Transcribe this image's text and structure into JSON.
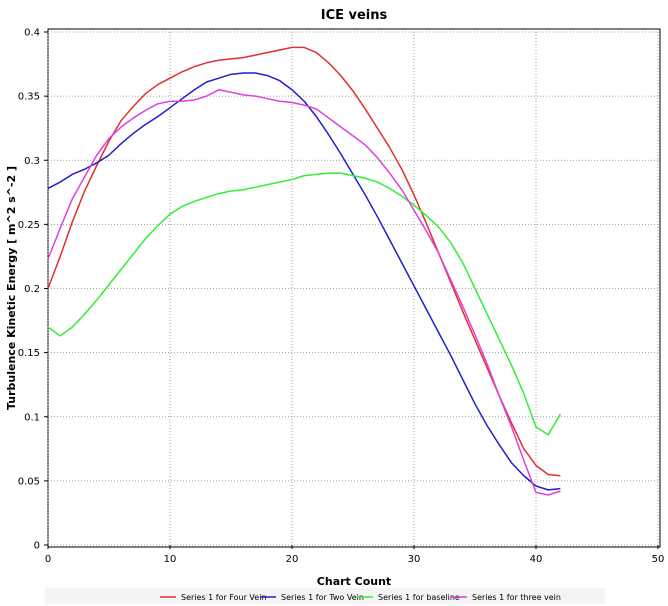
{
  "chart_data": {
    "type": "line",
    "title": "ICE veins",
    "xlabel": "Chart Count",
    "ylabel": "Turbulence Kinetic Energy [ m^2 s^-2 ]",
    "xlim": [
      0,
      50
    ],
    "ylim": [
      0,
      0.4
    ],
    "x_ticks": [
      "0",
      "10",
      "20",
      "30",
      "40",
      "50"
    ],
    "y_ticks": [
      "0",
      "0.05",
      "0.1",
      "0.15",
      "0.2",
      "0.25",
      "0.3",
      "0.35",
      "0.4"
    ],
    "grid": true,
    "legend_position": "bottom",
    "series": [
      {
        "name": "Series 1 for Four Vein",
        "color": "#e03030",
        "points": [
          [
            0,
            0.2
          ],
          [
            1,
            0.225
          ],
          [
            2,
            0.252
          ],
          [
            3,
            0.276
          ],
          [
            4,
            0.296
          ],
          [
            5,
            0.315
          ],
          [
            6,
            0.331
          ],
          [
            7,
            0.342
          ],
          [
            8,
            0.352
          ],
          [
            9,
            0.359
          ],
          [
            10,
            0.364
          ],
          [
            11,
            0.369
          ],
          [
            12,
            0.373
          ],
          [
            13,
            0.376
          ],
          [
            14,
            0.378
          ],
          [
            15,
            0.379
          ],
          [
            16,
            0.38
          ],
          [
            17,
            0.382
          ],
          [
            18,
            0.384
          ],
          [
            19,
            0.386
          ],
          [
            20,
            0.388
          ],
          [
            21,
            0.388
          ],
          [
            22,
            0.384
          ],
          [
            23,
            0.376
          ],
          [
            24,
            0.366
          ],
          [
            25,
            0.354
          ],
          [
            26,
            0.34
          ],
          [
            27,
            0.325
          ],
          [
            28,
            0.31
          ],
          [
            29,
            0.293
          ],
          [
            30,
            0.273
          ],
          [
            31,
            0.251
          ],
          [
            32,
            0.228
          ],
          [
            33,
            0.205
          ],
          [
            34,
            0.182
          ],
          [
            35,
            0.16
          ],
          [
            36,
            0.138
          ],
          [
            37,
            0.116
          ],
          [
            38,
            0.095
          ],
          [
            39,
            0.075
          ],
          [
            40,
            0.062
          ],
          [
            41,
            0.055
          ],
          [
            42,
            0.054
          ]
        ]
      },
      {
        "name": "Series 1 for Two Vein",
        "color": "#1f1fcc",
        "points": [
          [
            0,
            0.278
          ],
          [
            1,
            0.283
          ],
          [
            2,
            0.289
          ],
          [
            3,
            0.293
          ],
          [
            4,
            0.298
          ],
          [
            5,
            0.304
          ],
          [
            6,
            0.313
          ],
          [
            7,
            0.321
          ],
          [
            8,
            0.328
          ],
          [
            9,
            0.334
          ],
          [
            10,
            0.341
          ],
          [
            11,
            0.348
          ],
          [
            12,
            0.355
          ],
          [
            13,
            0.361
          ],
          [
            14,
            0.364
          ],
          [
            15,
            0.367
          ],
          [
            16,
            0.368
          ],
          [
            17,
            0.368
          ],
          [
            18,
            0.366
          ],
          [
            19,
            0.362
          ],
          [
            20,
            0.355
          ],
          [
            21,
            0.346
          ],
          [
            22,
            0.334
          ],
          [
            23,
            0.32
          ],
          [
            24,
            0.305
          ],
          [
            25,
            0.289
          ],
          [
            26,
            0.273
          ],
          [
            27,
            0.256
          ],
          [
            28,
            0.238
          ],
          [
            29,
            0.22
          ],
          [
            30,
            0.202
          ],
          [
            31,
            0.184
          ],
          [
            32,
            0.166
          ],
          [
            33,
            0.148
          ],
          [
            34,
            0.129
          ],
          [
            35,
            0.11
          ],
          [
            36,
            0.093
          ],
          [
            37,
            0.078
          ],
          [
            38,
            0.064
          ],
          [
            39,
            0.054
          ],
          [
            40,
            0.046
          ],
          [
            41,
            0.043
          ],
          [
            42,
            0.044
          ]
        ]
      },
      {
        "name": "Series 1 for baseline",
        "color": "#33ee33",
        "points": [
          [
            0,
            0.17
          ],
          [
            1,
            0.163
          ],
          [
            2,
            0.17
          ],
          [
            3,
            0.18
          ],
          [
            4,
            0.191
          ],
          [
            5,
            0.203
          ],
          [
            6,
            0.215
          ],
          [
            7,
            0.227
          ],
          [
            8,
            0.239
          ],
          [
            9,
            0.249
          ],
          [
            10,
            0.258
          ],
          [
            11,
            0.264
          ],
          [
            12,
            0.268
          ],
          [
            13,
            0.271
          ],
          [
            14,
            0.274
          ],
          [
            15,
            0.276
          ],
          [
            16,
            0.277
          ],
          [
            17,
            0.279
          ],
          [
            18,
            0.281
          ],
          [
            19,
            0.283
          ],
          [
            20,
            0.285
          ],
          [
            21,
            0.288
          ],
          [
            22,
            0.289
          ],
          [
            23,
            0.29
          ],
          [
            24,
            0.29
          ],
          [
            25,
            0.288
          ],
          [
            26,
            0.286
          ],
          [
            27,
            0.283
          ],
          [
            28,
            0.278
          ],
          [
            29,
            0.272
          ],
          [
            30,
            0.265
          ],
          [
            31,
            0.257
          ],
          [
            32,
            0.248
          ],
          [
            33,
            0.236
          ],
          [
            34,
            0.22
          ],
          [
            35,
            0.2
          ],
          [
            36,
            0.18
          ],
          [
            37,
            0.16
          ],
          [
            38,
            0.14
          ],
          [
            39,
            0.118
          ],
          [
            40,
            0.092
          ],
          [
            41,
            0.086
          ],
          [
            42,
            0.102
          ]
        ]
      },
      {
        "name": "Series 1 for three vein",
        "color": "#e040e0",
        "points": [
          [
            0,
            0.223
          ],
          [
            1,
            0.247
          ],
          [
            2,
            0.27
          ],
          [
            3,
            0.287
          ],
          [
            4,
            0.304
          ],
          [
            5,
            0.317
          ],
          [
            6,
            0.326
          ],
          [
            7,
            0.333
          ],
          [
            8,
            0.339
          ],
          [
            9,
            0.344
          ],
          [
            10,
            0.346
          ],
          [
            11,
            0.346
          ],
          [
            12,
            0.347
          ],
          [
            13,
            0.35
          ],
          [
            14,
            0.355
          ],
          [
            15,
            0.353
          ],
          [
            16,
            0.351
          ],
          [
            17,
            0.35
          ],
          [
            18,
            0.348
          ],
          [
            19,
            0.346
          ],
          [
            20,
            0.345
          ],
          [
            21,
            0.343
          ],
          [
            22,
            0.34
          ],
          [
            23,
            0.333
          ],
          [
            24,
            0.326
          ],
          [
            25,
            0.319
          ],
          [
            26,
            0.312
          ],
          [
            27,
            0.302
          ],
          [
            28,
            0.29
          ],
          [
            29,
            0.277
          ],
          [
            30,
            0.261
          ],
          [
            31,
            0.245
          ],
          [
            32,
            0.228
          ],
          [
            33,
            0.207
          ],
          [
            34,
            0.186
          ],
          [
            35,
            0.164
          ],
          [
            36,
            0.141
          ],
          [
            37,
            0.116
          ],
          [
            38,
            0.092
          ],
          [
            39,
            0.066
          ],
          [
            40,
            0.041
          ],
          [
            41,
            0.039
          ],
          [
            42,
            0.042
          ]
        ]
      }
    ]
  }
}
